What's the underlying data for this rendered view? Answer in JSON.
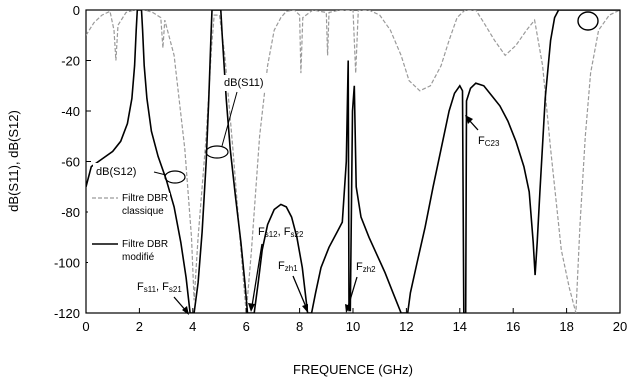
{
  "chart_data": {
    "type": "line",
    "xlabel": "FREQUENCE (GHz)",
    "ylabel": "dB(S11), dB(S12)",
    "xlim": [
      0,
      20
    ],
    "ylim": [
      -120,
      0
    ],
    "xticks": [
      "0",
      "2",
      "4",
      "6",
      "8",
      "10",
      "12",
      "14",
      "16",
      "18",
      "20"
    ],
    "yticks": [
      "0",
      "-20",
      "-40",
      "-60",
      "-80",
      "-100",
      "-120"
    ],
    "grid": false,
    "legend_position": "left",
    "legend": [
      {
        "label_line1": "Filtre DBR",
        "label_line2": "classique",
        "style": "dashed",
        "color": "#9a9a9a"
      },
      {
        "label_line1": "Filtre DBR",
        "label_line2": "modifié",
        "style": "solid",
        "color": "#000000"
      }
    ],
    "annotations": [
      {
        "id": "s12",
        "text": "dB(S12)",
        "x": 2.7,
        "y": -66
      },
      {
        "id": "s11",
        "text": "dB(S11)",
        "x": 4.9,
        "y": -56
      },
      {
        "id": "fs11",
        "base1": "F",
        "sub1": "s11",
        "sep": ", ",
        "base2": "F",
        "sub2": "s21",
        "x": 3.9,
        "y": -120
      },
      {
        "id": "fs12",
        "base1": "F",
        "sub1": "s12",
        "sep": ", ",
        "base2": "F",
        "sub2": "s22",
        "x": 6.3,
        "y": -118
      },
      {
        "id": "fzh1",
        "base1": "F",
        "sub1": "zh1",
        "x": 8.3,
        "y": -119
      },
      {
        "id": "fzh2",
        "base1": "F",
        "sub1": "zh2",
        "x": 9.9,
        "y": -119
      },
      {
        "id": "fc23",
        "base1": "F",
        "sub1": "C23",
        "x": 14.7,
        "y": -38
      }
    ],
    "series": [
      {
        "style": "solid",
        "color": "#000000",
        "points": [
          [
            0,
            -70
          ],
          [
            0.2,
            -62
          ],
          [
            0.6,
            -59
          ],
          [
            1.0,
            -56
          ],
          [
            1.3,
            -52
          ],
          [
            1.55,
            -45
          ],
          [
            1.72,
            -35
          ],
          [
            1.82,
            -22
          ],
          [
            1.88,
            -8
          ],
          [
            1.92,
            0
          ],
          [
            2.08,
            0
          ],
          [
            2.12,
            -8
          ],
          [
            2.18,
            -22
          ],
          [
            2.28,
            -35
          ],
          [
            2.45,
            -48
          ],
          [
            2.7,
            -58
          ],
          [
            3.0,
            -67
          ],
          [
            3.3,
            -78
          ],
          [
            3.55,
            -92
          ],
          [
            3.75,
            -106
          ],
          [
            3.9,
            -120
          ],
          [
            4.05,
            -120
          ],
          [
            4.2,
            -108
          ],
          [
            4.35,
            -88
          ],
          [
            4.5,
            -60
          ],
          [
            4.6,
            -35
          ],
          [
            4.68,
            -10
          ],
          [
            4.72,
            0
          ],
          [
            5.05,
            0
          ],
          [
            5.1,
            -10
          ],
          [
            5.25,
            -35
          ],
          [
            5.4,
            -55
          ],
          [
            5.6,
            -74
          ],
          [
            5.8,
            -92
          ],
          [
            5.95,
            -108
          ],
          [
            6.05,
            -120
          ],
          [
            6.3,
            -120
          ],
          [
            6.45,
            -108
          ],
          [
            6.6,
            -95
          ],
          [
            6.8,
            -85
          ],
          [
            7.05,
            -79
          ],
          [
            7.3,
            -77
          ],
          [
            7.5,
            -78
          ],
          [
            7.7,
            -82
          ],
          [
            7.9,
            -90
          ],
          [
            8.1,
            -102
          ],
          [
            8.3,
            -120
          ],
          [
            8.45,
            -120
          ],
          [
            8.6,
            -112
          ],
          [
            8.8,
            -102
          ],
          [
            9.1,
            -94
          ],
          [
            9.4,
            -88
          ],
          [
            9.6,
            -84
          ],
          [
            9.75,
            -60
          ],
          [
            9.82,
            -20
          ],
          [
            9.85,
            -119
          ],
          [
            9.9,
            -119
          ],
          [
            9.98,
            -40
          ],
          [
            10.05,
            -30
          ],
          [
            10.12,
            -70
          ],
          [
            10.3,
            -82
          ],
          [
            10.6,
            -90
          ],
          [
            10.9,
            -97
          ],
          [
            11.2,
            -104
          ],
          [
            11.5,
            -112
          ],
          [
            11.8,
            -120
          ],
          [
            12.05,
            -120
          ],
          [
            12.15,
            -112
          ],
          [
            12.4,
            -100
          ],
          [
            12.7,
            -86
          ],
          [
            13.0,
            -70
          ],
          [
            13.3,
            -55
          ],
          [
            13.6,
            -40
          ],
          [
            13.8,
            -33
          ],
          [
            14.0,
            -30
          ],
          [
            14.1,
            -32
          ],
          [
            14.15,
            -120
          ],
          [
            14.22,
            -120
          ],
          [
            14.25,
            -36
          ],
          [
            14.4,
            -31
          ],
          [
            14.6,
            -29
          ],
          [
            14.9,
            -30
          ],
          [
            15.2,
            -34
          ],
          [
            15.5,
            -38
          ],
          [
            15.8,
            -44
          ],
          [
            16.1,
            -52
          ],
          [
            16.4,
            -62
          ],
          [
            16.6,
            -72
          ],
          [
            16.75,
            -92
          ],
          [
            16.82,
            -105
          ],
          [
            16.9,
            -92
          ],
          [
            17.0,
            -72
          ],
          [
            17.2,
            -35
          ],
          [
            17.4,
            -12
          ],
          [
            17.55,
            -3
          ],
          [
            17.7,
            0
          ],
          [
            20,
            0
          ]
        ]
      },
      {
        "style": "dashed",
        "color": "#9a9a9a",
        "points": [
          [
            0,
            -10
          ],
          [
            0.3,
            -5
          ],
          [
            0.6,
            -2
          ],
          [
            0.9,
            -0.5
          ],
          [
            1.05,
            -8
          ],
          [
            1.12,
            -20
          ],
          [
            1.2,
            -6
          ],
          [
            1.5,
            -1
          ],
          [
            1.8,
            0
          ],
          [
            2.2,
            0
          ],
          [
            2.5,
            -1
          ],
          [
            2.8,
            -3
          ],
          [
            2.88,
            -15
          ],
          [
            2.95,
            -4
          ],
          [
            3.3,
            -18
          ],
          [
            3.7,
            -55
          ],
          [
            3.95,
            -90
          ],
          [
            4.05,
            -115
          ],
          [
            4.2,
            -90
          ],
          [
            4.5,
            -50
          ],
          [
            4.7,
            -15
          ],
          [
            4.8,
            -2
          ],
          [
            5.0,
            -2
          ],
          [
            5.2,
            -18
          ],
          [
            5.5,
            -55
          ],
          [
            5.8,
            -95
          ],
          [
            6.0,
            -120
          ],
          [
            6.2,
            -95
          ],
          [
            6.5,
            -50
          ],
          [
            6.8,
            -22
          ],
          [
            7.05,
            -8
          ],
          [
            7.3,
            -3
          ],
          [
            7.5,
            -0.5
          ],
          [
            7.8,
            0
          ],
          [
            8.0,
            -2
          ],
          [
            8.05,
            -25
          ],
          [
            8.12,
            -3
          ],
          [
            8.5,
            0
          ],
          [
            9.0,
            -1
          ],
          [
            9.05,
            -18
          ],
          [
            9.1,
            -1
          ],
          [
            9.5,
            0
          ],
          [
            10.0,
            0
          ],
          [
            10.1,
            -25
          ],
          [
            10.2,
            0
          ],
          [
            10.6,
            0
          ],
          [
            11.0,
            -2
          ],
          [
            11.4,
            -8
          ],
          [
            11.8,
            -18
          ],
          [
            12.1,
            -28
          ],
          [
            12.5,
            -32
          ],
          [
            12.9,
            -30
          ],
          [
            13.3,
            -22
          ],
          [
            13.6,
            -12
          ],
          [
            13.9,
            -3
          ],
          [
            14.2,
            0
          ],
          [
            14.6,
            0
          ],
          [
            14.9,
            -5
          ],
          [
            15.3,
            -12
          ],
          [
            15.7,
            -18
          ],
          [
            16.1,
            -14
          ],
          [
            16.5,
            -8
          ],
          [
            16.8,
            -4
          ],
          [
            17.1,
            -22
          ],
          [
            17.4,
            -55
          ],
          [
            17.8,
            -95
          ],
          [
            18.1,
            -110
          ],
          [
            18.35,
            -120
          ],
          [
            18.5,
            -85
          ],
          [
            18.7,
            -50
          ],
          [
            18.9,
            -25
          ],
          [
            19.2,
            -8
          ],
          [
            19.6,
            -2
          ],
          [
            20,
            0
          ]
        ]
      }
    ]
  }
}
